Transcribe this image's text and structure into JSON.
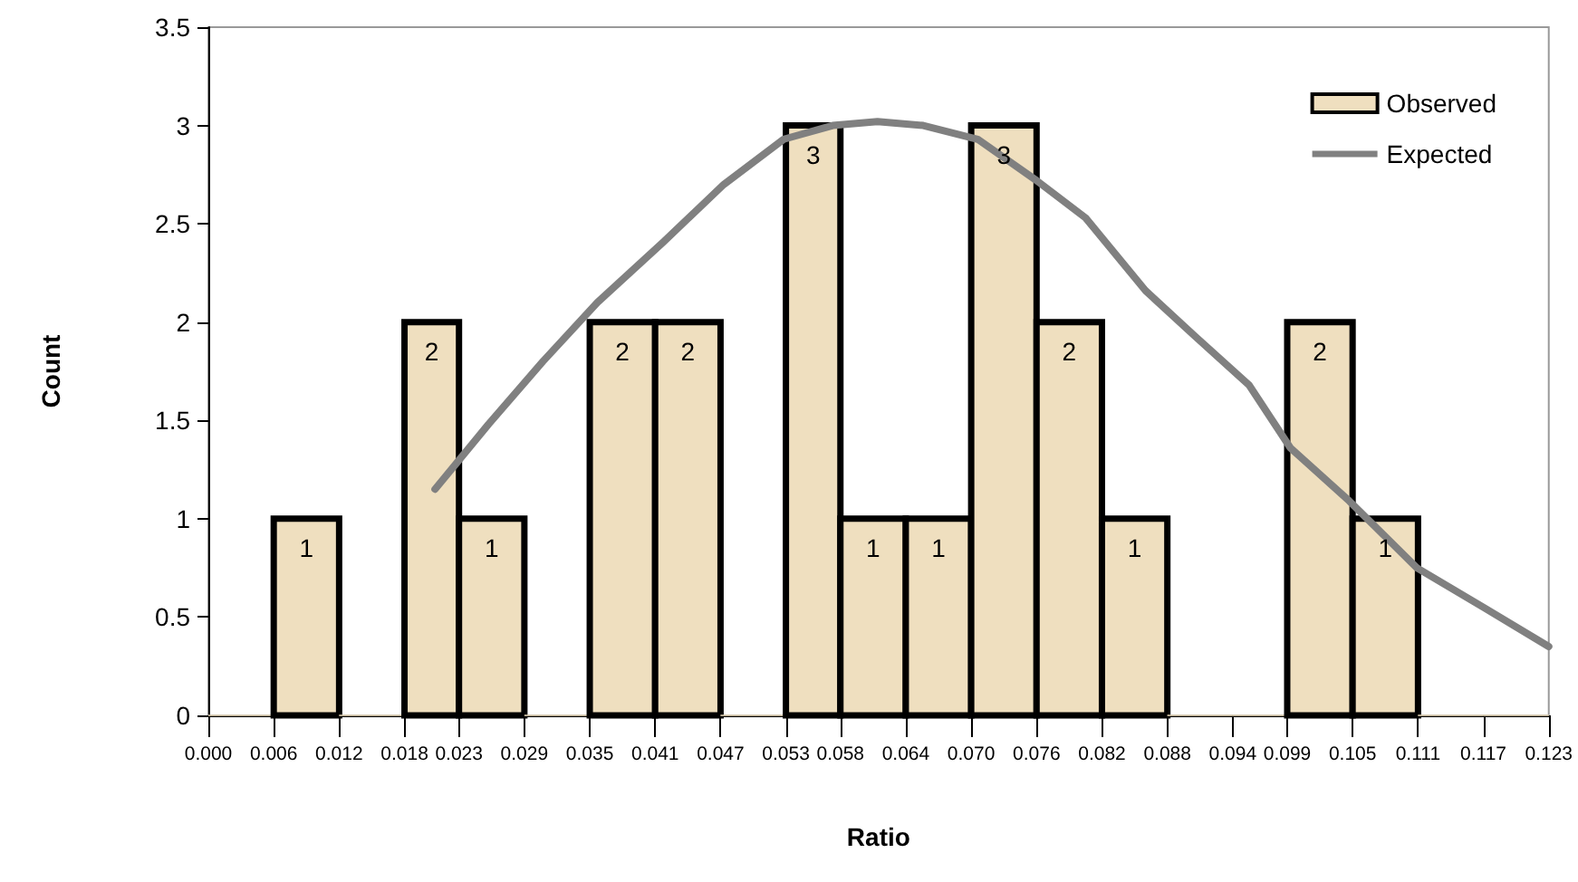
{
  "chart_data": {
    "type": "histogram",
    "xlabel": "Ratio",
    "ylabel": "Count",
    "bins": [
      0.0,
      0.006,
      0.012,
      0.018,
      0.023,
      0.029,
      0.035,
      0.041,
      0.047,
      0.053,
      0.058,
      0.064,
      0.07,
      0.076,
      0.082,
      0.088,
      0.094,
      0.099,
      0.105,
      0.111,
      0.117,
      0.123
    ],
    "series": [
      {
        "name": "Observed",
        "color": "#efdfbf",
        "values": [
          0,
          1,
          0,
          2,
          1,
          0,
          2,
          2,
          0,
          3,
          1,
          1,
          3,
          2,
          1,
          0,
          0,
          2,
          1,
          0,
          0
        ],
        "value_labels": [
          null,
          "1",
          null,
          "2",
          "1",
          null,
          "2",
          "2",
          null,
          "3",
          "1",
          "1",
          "3",
          "2",
          "1",
          null,
          null,
          "2",
          "1",
          null,
          null
        ]
      },
      {
        "name": "Expected",
        "type": "line",
        "color": "#808080",
        "marker": "none",
        "x": [
          0.0208,
          0.0257,
          0.0307,
          0.0357,
          0.0418,
          0.0473,
          0.0528,
          0.0573,
          0.0614,
          0.0656,
          0.0706,
          0.076,
          0.0805,
          0.086,
          0.0905,
          0.0955,
          0.0993,
          0.1047,
          0.1109,
          0.117,
          0.123
        ],
        "values": [
          1.15,
          1.48,
          1.8,
          2.1,
          2.41,
          2.7,
          2.93,
          3.0,
          3.02,
          3.0,
          2.93,
          2.72,
          2.53,
          2.16,
          1.93,
          1.68,
          1.36,
          1.09,
          0.75,
          0.55,
          0.35
        ]
      }
    ],
    "xlim": [
      0,
      0.123
    ],
    "xticks": [
      {
        "value": 0,
        "label": "0.000"
      },
      0.006,
      0.012,
      0.018,
      0.023,
      0.029,
      0.035,
      0.041,
      0.047,
      0.053,
      0.058,
      0.064,
      {
        "value": 0.07,
        "label": "0.070"
      },
      0.076,
      0.082,
      0.088,
      0.094,
      0.099,
      0.105,
      0.111,
      0.117,
      0.123
    ],
    "ylim": [
      0,
      3.5
    ],
    "yticks": [
      0,
      0.5,
      1,
      1.5,
      2,
      2.5,
      3,
      3.5
    ],
    "legend": "top right"
  }
}
